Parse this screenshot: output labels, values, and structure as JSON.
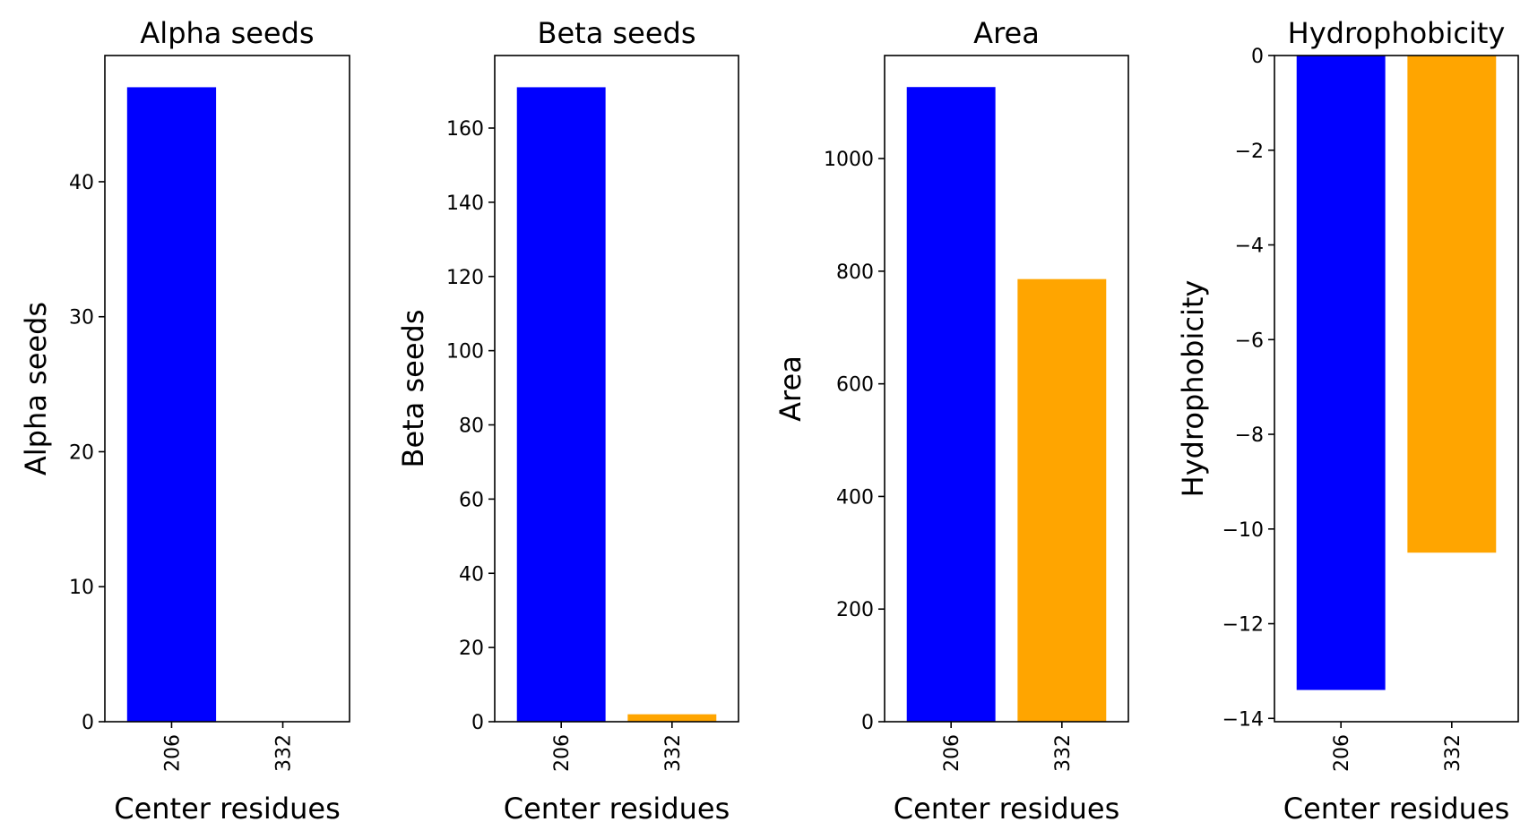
{
  "chart_data": [
    {
      "type": "bar",
      "title": "Alpha seeds",
      "xlabel": "Center residues",
      "ylabel": "Alpha seeds",
      "categories": [
        "206",
        "332"
      ],
      "values": [
        47,
        0
      ],
      "colors": [
        "#0000ff",
        "#ffa500"
      ],
      "ylim": [
        0,
        49.35
      ],
      "yticks": [
        0,
        10,
        20,
        30,
        40
      ],
      "ytick_labels": [
        "0",
        "10",
        "20",
        "30",
        "40"
      ]
    },
    {
      "type": "bar",
      "title": "Beta seeds",
      "xlabel": "Center residues",
      "ylabel": "Beta seeds",
      "categories": [
        "206",
        "332"
      ],
      "values": [
        171,
        2
      ],
      "colors": [
        "#0000ff",
        "#ffa500"
      ],
      "ylim": [
        0,
        179.55
      ],
      "yticks": [
        0,
        20,
        40,
        60,
        80,
        100,
        120,
        140,
        160
      ],
      "ytick_labels": [
        "0",
        "20",
        "40",
        "60",
        "80",
        "100",
        "120",
        "140",
        "160"
      ]
    },
    {
      "type": "bar",
      "title": "Area",
      "xlabel": "Center residues",
      "ylabel": "Area",
      "categories": [
        "206",
        "332"
      ],
      "values": [
        1127,
        786
      ],
      "colors": [
        "#0000ff",
        "#ffa500"
      ],
      "ylim": [
        0,
        1183
      ],
      "yticks": [
        0,
        200,
        400,
        600,
        800,
        1000
      ],
      "ytick_labels": [
        "0",
        "200",
        "400",
        "600",
        "800",
        "1000"
      ]
    },
    {
      "type": "bar",
      "title": "Hydrophobicity",
      "xlabel": "Center residues",
      "ylabel": "Hydrophobicity",
      "categories": [
        "206",
        "332"
      ],
      "values": [
        -13.4,
        -10.5
      ],
      "colors": [
        "#0000ff",
        "#ffa500"
      ],
      "ylim": [
        -14.07,
        0
      ],
      "yticks": [
        0,
        -2,
        -4,
        -6,
        -8,
        -10,
        -12,
        -14
      ],
      "ytick_labels": [
        "0",
        "−2",
        "−4",
        "−6",
        "−8",
        "−10",
        "−12",
        "−14"
      ]
    }
  ]
}
